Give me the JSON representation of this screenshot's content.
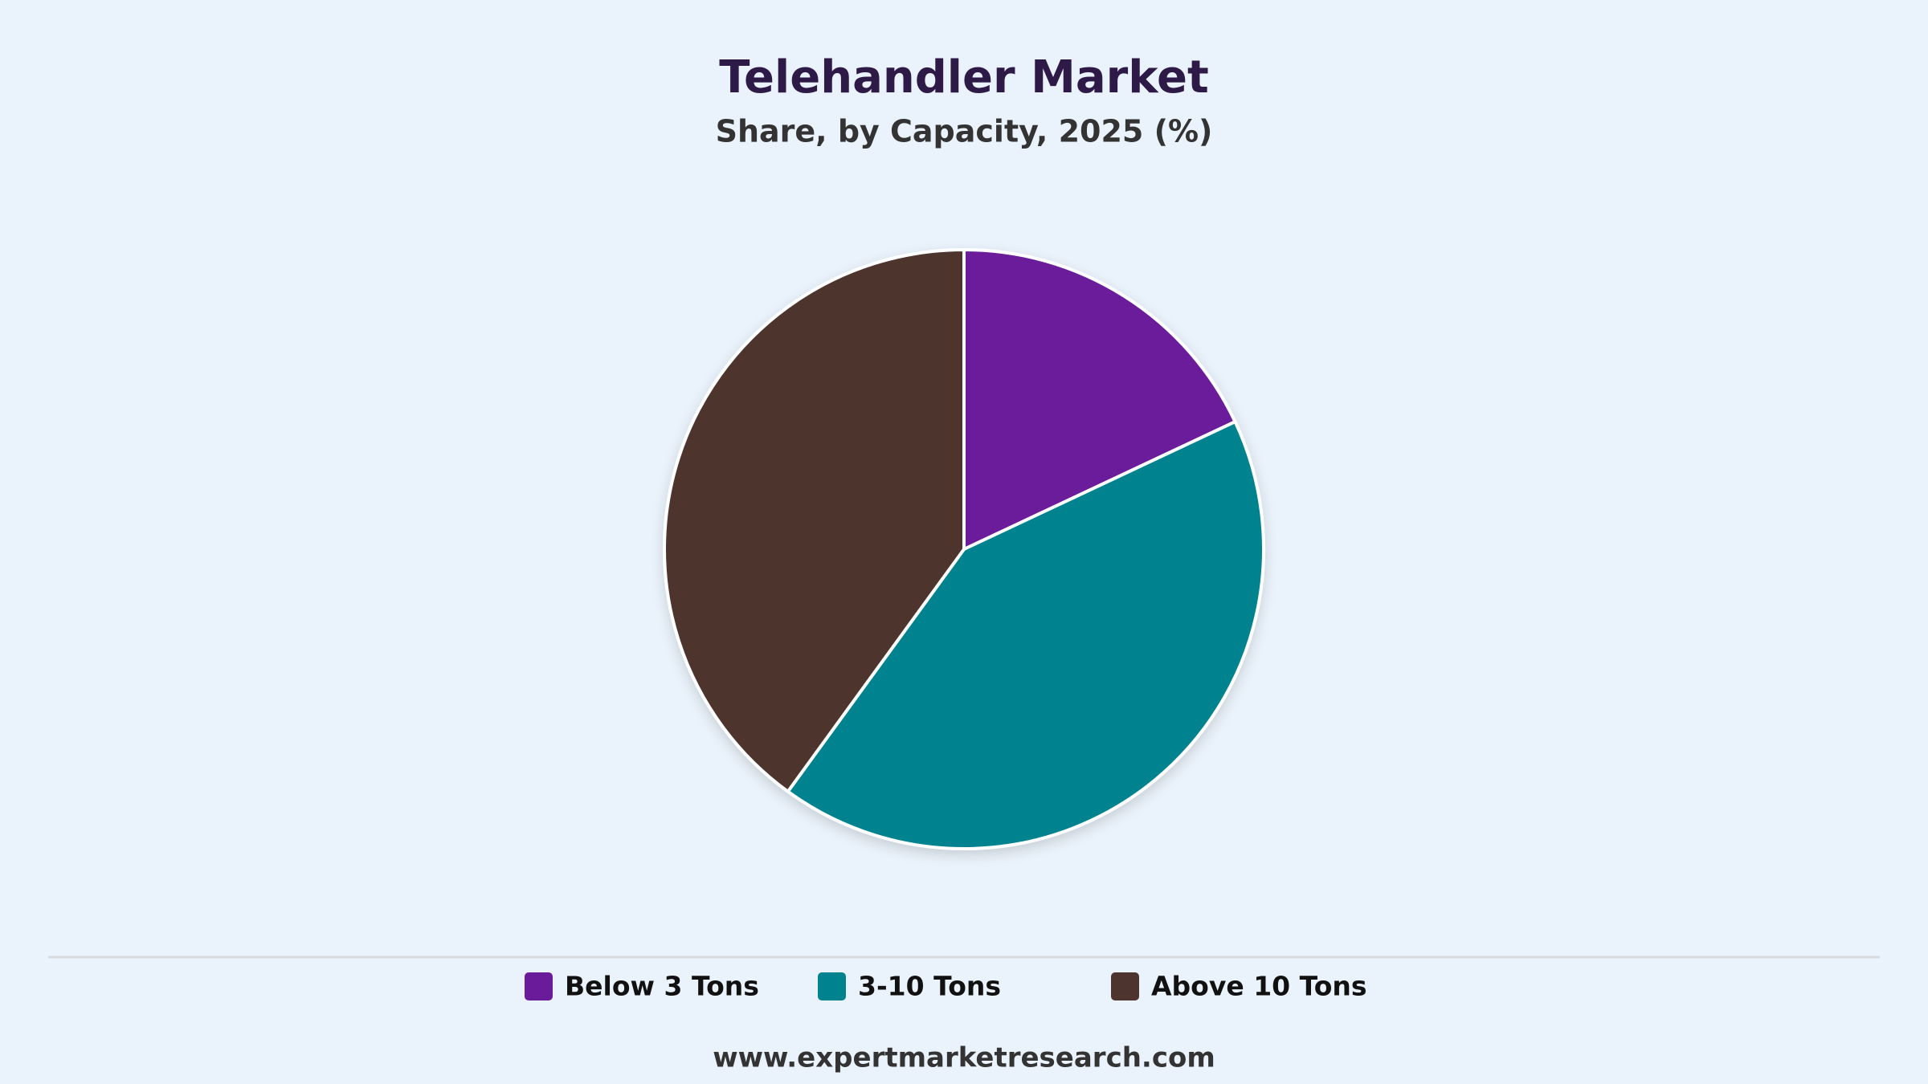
{
  "chart_data": {
    "type": "pie",
    "title": "Telehandler Market",
    "subtitle": "Share, by Capacity, 2025 (%)",
    "categories": [
      "Below 3 Tons",
      "3-10 Tons",
      "Above 10 Tons"
    ],
    "values": [
      18,
      42,
      40
    ],
    "colors": [
      "#6a1b9a",
      "#00838f",
      "#4e342e"
    ],
    "legend": "bottom"
  },
  "footer": "www.expertmarketresearch.com"
}
